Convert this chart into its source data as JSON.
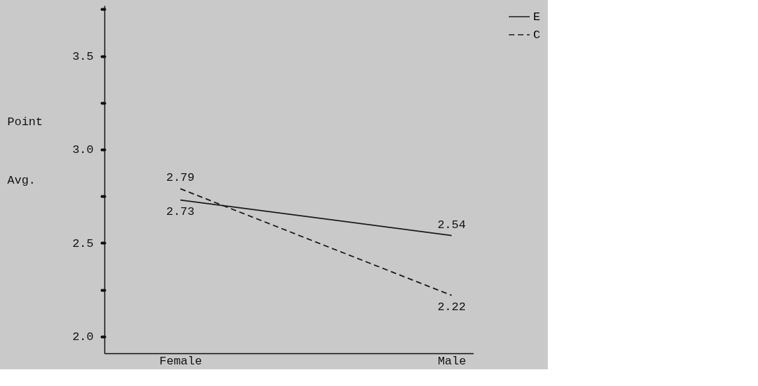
{
  "chart_data": {
    "type": "line",
    "ylabel": "Point Avg.",
    "categories": [
      "Female",
      "Male"
    ],
    "series": [
      {
        "name": "E",
        "color": "#1a1a1a",
        "line_style": "solid",
        "values": [
          2.73,
          2.54
        ]
      },
      {
        "name": "C",
        "color": "#1a1a1a",
        "line_style": "dashed",
        "values": [
          2.79,
          2.22
        ]
      }
    ],
    "ylim": [
      1.91,
      3.77
    ],
    "yticks": [
      {
        "value": 2.0,
        "label": "2.0"
      },
      {
        "value": 2.25,
        "label": null
      },
      {
        "value": 2.5,
        "label": "2.5"
      },
      {
        "value": 2.75,
        "label": null
      },
      {
        "value": 3.0,
        "label": "3.0"
      },
      {
        "value": 3.25,
        "label": null
      },
      {
        "value": 3.5,
        "label": "3.5"
      },
      {
        "value": 3.75,
        "label": null
      }
    ],
    "data_labels": true,
    "grid": false,
    "legend": "right",
    "marker": "none"
  }
}
